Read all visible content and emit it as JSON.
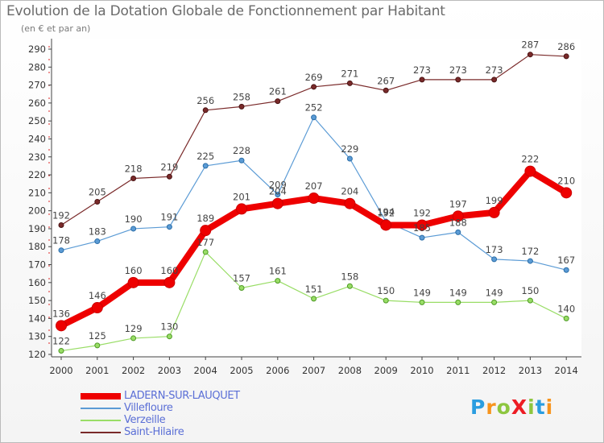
{
  "title": "Evolution de la Dotation Globale de Fonctionnement par Habitant",
  "subtitle": "(en € et par an)",
  "logo_text": "ProXiti",
  "logo_colors": [
    "#2a9de0",
    "#f7941d",
    "#8dc63f",
    "#ed1c24",
    "#8dc63f",
    "#2a9de0",
    "#f7941d"
  ],
  "chart_data": {
    "type": "line",
    "title": "Evolution de la Dotation Globale de Fonctionnement par Habitant",
    "subtitle": "(en € et par an)",
    "xlabel": "",
    "ylabel": "",
    "x": [
      "2000",
      "2001",
      "2002",
      "2003",
      "2004",
      "2005",
      "2006",
      "2007",
      "2008",
      "2009",
      "2010",
      "2011",
      "2012",
      "2013",
      "2014"
    ],
    "ylim": [
      120,
      290
    ],
    "yticks": [
      120,
      130,
      140,
      150,
      160,
      170,
      180,
      190,
      200,
      210,
      220,
      230,
      240,
      250,
      260,
      270,
      280,
      290
    ],
    "grid": false,
    "legend": "bottom-left",
    "series": [
      {
        "name": "LADERN-SUR-LAUQUET",
        "color": "#ee0000",
        "values": [
          136,
          146,
          160,
          160,
          189,
          201,
          204,
          207,
          204,
          192,
          192,
          197,
          199,
          222,
          210
        ]
      },
      {
        "name": "Villefloure",
        "color": "#5b9bd5",
        "values": [
          178,
          183,
          190,
          191,
          225,
          228,
          209,
          252,
          229,
          194,
          185,
          188,
          173,
          172,
          167
        ]
      },
      {
        "name": "Verzeille",
        "color": "#99dd66",
        "values": [
          122,
          125,
          129,
          130,
          177,
          157,
          161,
          151,
          158,
          150,
          149,
          149,
          149,
          150,
          140
        ]
      },
      {
        "name": "Saint-Hilaire",
        "color": "#7a2a2a",
        "values": [
          192,
          205,
          218,
          219,
          256,
          258,
          261,
          269,
          271,
          267,
          273,
          273,
          273,
          287,
          286
        ]
      }
    ]
  }
}
